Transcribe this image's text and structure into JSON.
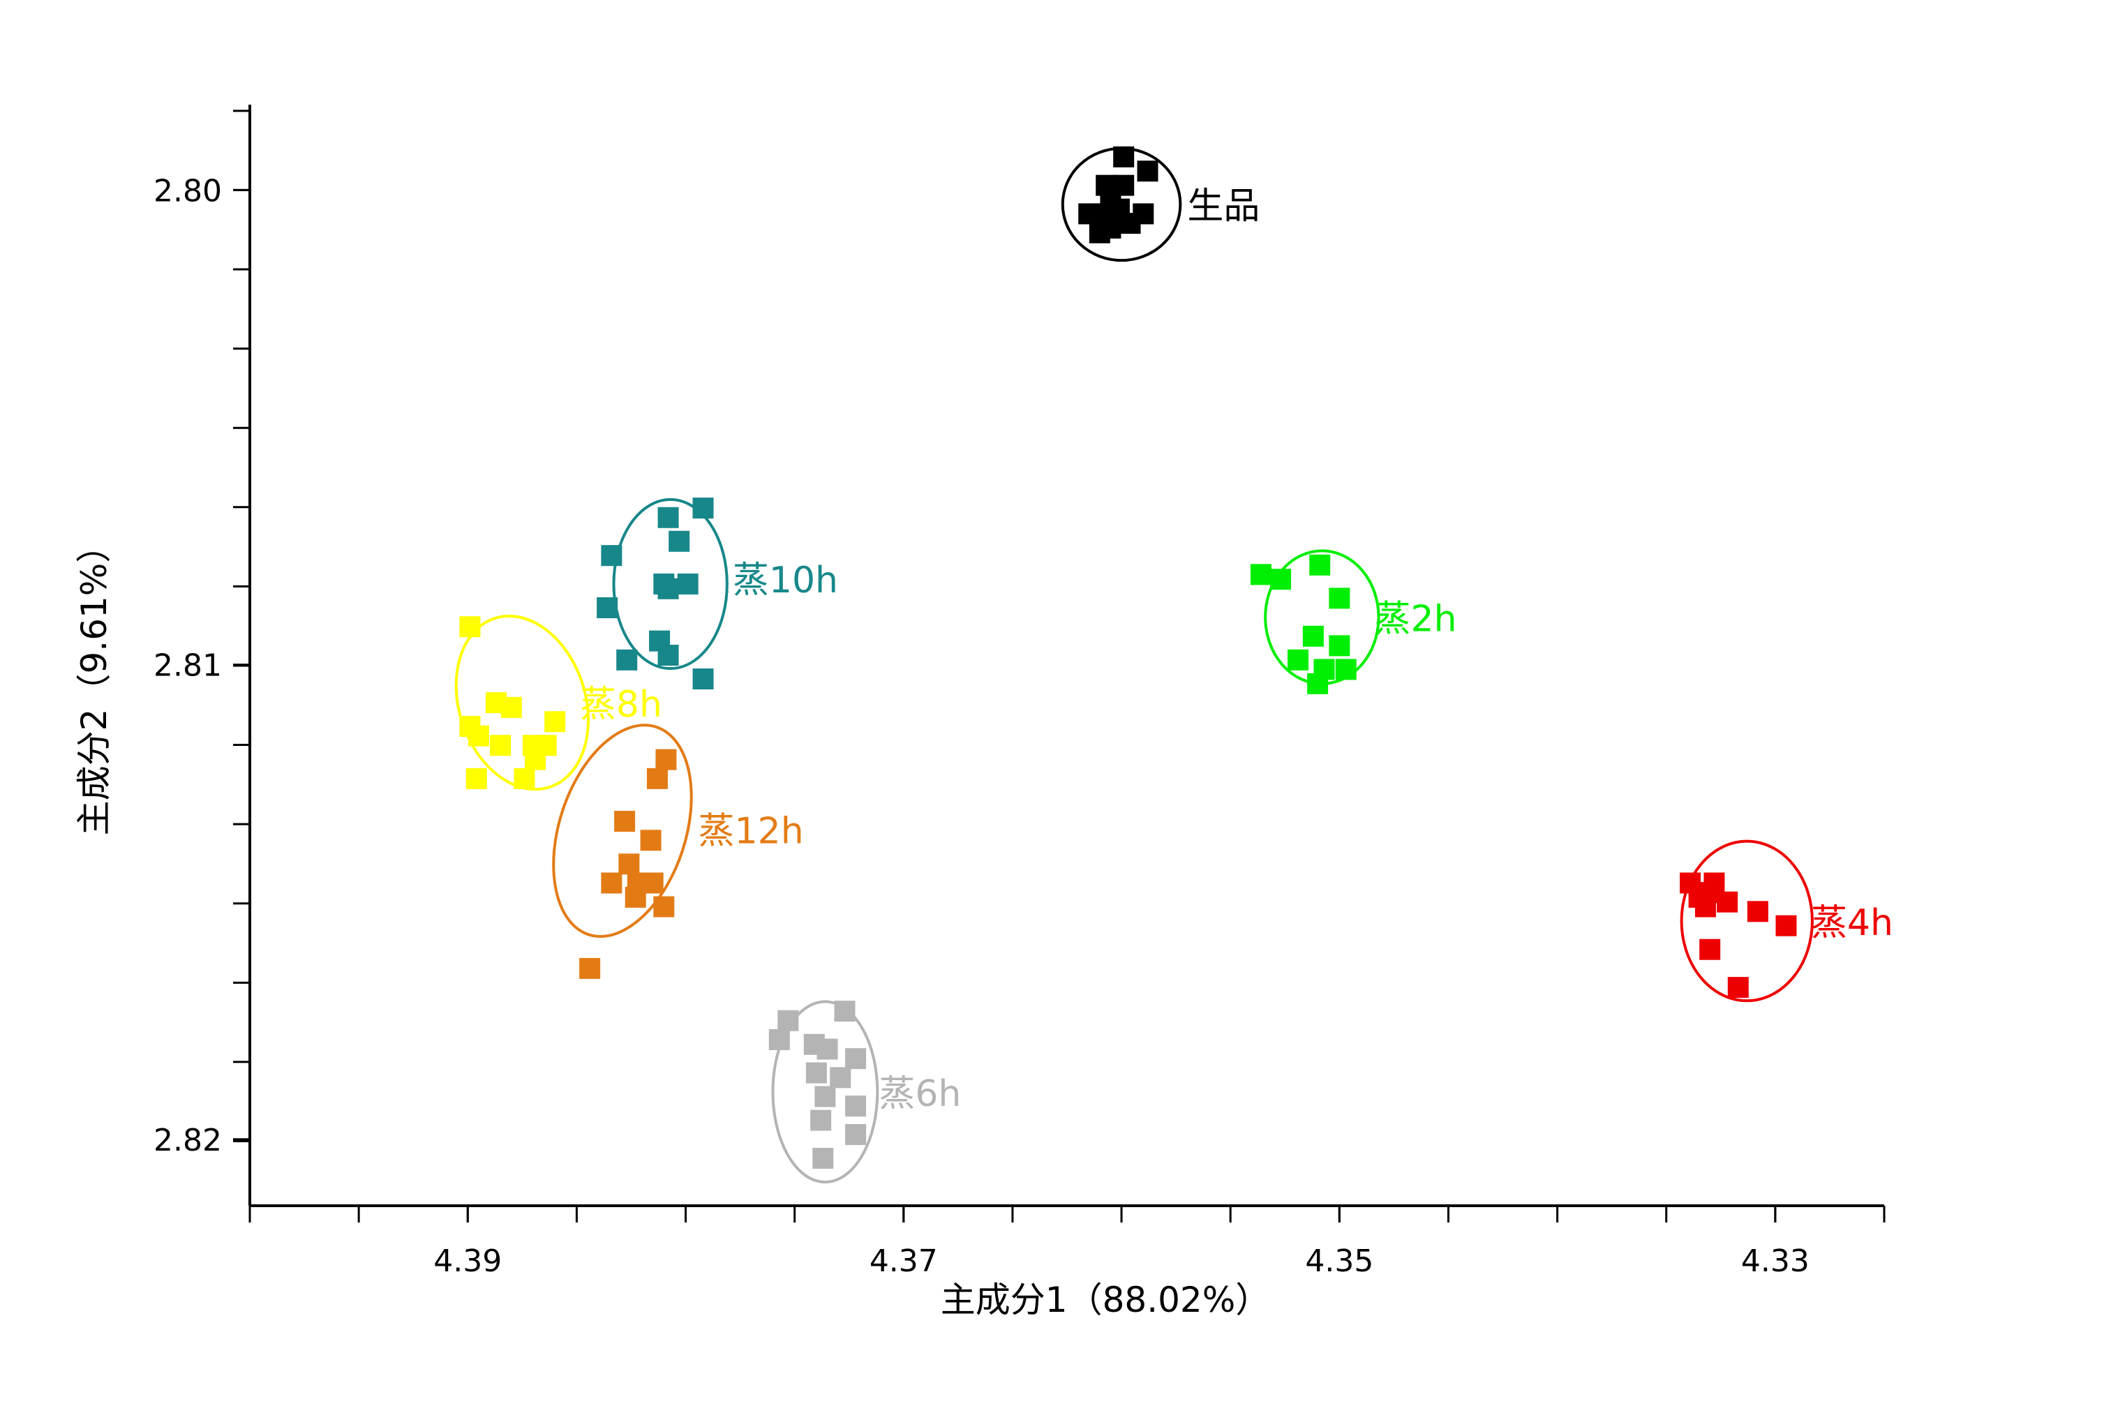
{
  "chart_data": {
    "type": "scatter",
    "xlabel": "主成分1（88.02%）",
    "ylabel": "主成分2（9.61%）",
    "xlim": [
      4.4,
      4.325
    ],
    "ylim": [
      2.7982,
      2.8214
    ],
    "x_reversed": true,
    "y_reversed": true,
    "x_ticks": [
      4.39,
      4.37,
      4.35,
      4.33
    ],
    "x_tick_labels": [
      "4.39",
      "4.37",
      "4.35",
      "4.33"
    ],
    "x_minor_step": 0.005,
    "y_ticks": [
      2.8,
      2.81,
      2.82
    ],
    "y_tick_labels": [
      "2.80",
      "2.81",
      "2.82"
    ],
    "y_minor_step": 0.00167,
    "grid": false,
    "legend": "none",
    "series": [
      {
        "name": "生品",
        "color": "#000000",
        "ellipse": {
          "cx": 4.36,
          "cy": 2.8003,
          "rx": 0.0027,
          "ry": 0.00118
        },
        "points": [
          [
            4.3599,
            2.7993
          ],
          [
            4.3588,
            2.7996
          ],
          [
            4.3607,
            2.7999
          ],
          [
            4.3599,
            2.7999
          ],
          [
            4.3605,
            2.8002
          ],
          [
            4.3608,
            2.8005
          ],
          [
            4.3601,
            2.8004
          ],
          [
            4.359,
            2.8005
          ],
          [
            4.3615,
            2.8005
          ],
          [
            4.3605,
            2.8008
          ],
          [
            4.3596,
            2.8007
          ],
          [
            4.361,
            2.8009
          ]
        ]
      },
      {
        "name": "蒸10h",
        "color": "#17878a",
        "ellipse": {
          "cx": 4.3807,
          "cy": 2.8083,
          "rx": 0.0026,
          "ry": 0.00178
        },
        "points": [
          [
            4.3792,
            2.8067
          ],
          [
            4.3808,
            2.8069
          ],
          [
            4.3803,
            2.8074
          ],
          [
            4.3834,
            2.8077
          ],
          [
            4.3808,
            2.8084
          ],
          [
            4.3799,
            2.8083
          ],
          [
            4.381,
            2.8083
          ],
          [
            4.3836,
            2.8088
          ],
          [
            4.3808,
            2.8098
          ],
          [
            4.3827,
            2.8099
          ],
          [
            4.3792,
            2.8103
          ],
          [
            4.3812,
            2.8095
          ]
        ]
      },
      {
        "name": "蒸8h",
        "color": "#ffff00",
        "ellipse": {
          "cx": 4.3875,
          "cy": 2.8108,
          "rx": 0.0029,
          "ry": 0.00187
        },
        "points": [
          [
            4.3899,
            2.8092
          ],
          [
            4.3899,
            2.8113
          ],
          [
            4.3887,
            2.8108
          ],
          [
            4.388,
            2.8109
          ],
          [
            4.386,
            2.8112
          ],
          [
            4.387,
            2.8117
          ],
          [
            4.3885,
            2.8117
          ],
          [
            4.3895,
            2.8115
          ],
          [
            4.3869,
            2.812
          ],
          [
            4.3896,
            2.8124
          ],
          [
            4.3874,
            2.8124
          ],
          [
            4.3864,
            2.8117
          ]
        ]
      },
      {
        "name": "蒸2h",
        "color": "#00ee00",
        "ellipse": {
          "cx": 4.3508,
          "cy": 2.809,
          "rx": 0.0026,
          "ry": 0.0014
        },
        "points": [
          [
            4.3536,
            2.8081
          ],
          [
            4.3527,
            2.8082
          ],
          [
            4.3509,
            2.8079
          ],
          [
            4.35,
            2.8086
          ],
          [
            4.3512,
            2.8094
          ],
          [
            4.35,
            2.8096
          ],
          [
            4.3519,
            2.8099
          ],
          [
            4.3507,
            2.8101
          ],
          [
            4.3497,
            2.8101
          ],
          [
            4.351,
            2.8104
          ]
        ]
      },
      {
        "name": "蒸12h",
        "color": "#e37b15",
        "ellipse": {
          "cx": 4.3829,
          "cy": 2.8135,
          "rx": 0.0029,
          "ry": 0.0023
        },
        "points": [
          [
            4.3809,
            2.812
          ],
          [
            4.3813,
            2.8124
          ],
          [
            4.3828,
            2.8133
          ],
          [
            4.3816,
            2.8137
          ],
          [
            4.3826,
            2.8142
          ],
          [
            4.3815,
            2.8146
          ],
          [
            4.3834,
            2.8146
          ],
          [
            4.3822,
            2.8146
          ],
          [
            4.3823,
            2.8149
          ],
          [
            4.381,
            2.8151
          ],
          [
            4.3844,
            2.8164
          ]
        ]
      },
      {
        "name": "蒸4h",
        "color": "#ee0000",
        "ellipse": {
          "cx": 4.3313,
          "cy": 2.8154,
          "rx": 0.003,
          "ry": 0.00168
        },
        "points": [
          [
            4.3339,
            2.8146
          ],
          [
            4.333,
            2.8148
          ],
          [
            4.3328,
            2.8146
          ],
          [
            4.3335,
            2.8149
          ],
          [
            4.3322,
            2.815
          ],
          [
            4.3332,
            2.8151
          ],
          [
            4.3308,
            2.8152
          ],
          [
            4.3295,
            2.8155
          ],
          [
            4.333,
            2.816
          ],
          [
            4.3317,
            2.8168
          ]
        ]
      },
      {
        "name": "蒸6h",
        "color": "#b4b4b4",
        "ellipse": {
          "cx": 4.3736,
          "cy": 2.819,
          "rx": 0.0024,
          "ry": 0.0019
        },
        "points": [
          [
            4.3753,
            2.8175
          ],
          [
            4.3727,
            2.8173
          ],
          [
            4.3757,
            2.8179
          ],
          [
            4.3741,
            2.818
          ],
          [
            4.3735,
            2.8181
          ],
          [
            4.3722,
            2.8183
          ],
          [
            4.374,
            2.8186
          ],
          [
            4.3729,
            2.8187
          ],
          [
            4.3736,
            2.8191
          ],
          [
            4.3722,
            2.8193
          ],
          [
            4.3738,
            2.8196
          ],
          [
            4.3722,
            2.8199
          ],
          [
            4.3737,
            2.8204
          ]
        ]
      }
    ]
  }
}
